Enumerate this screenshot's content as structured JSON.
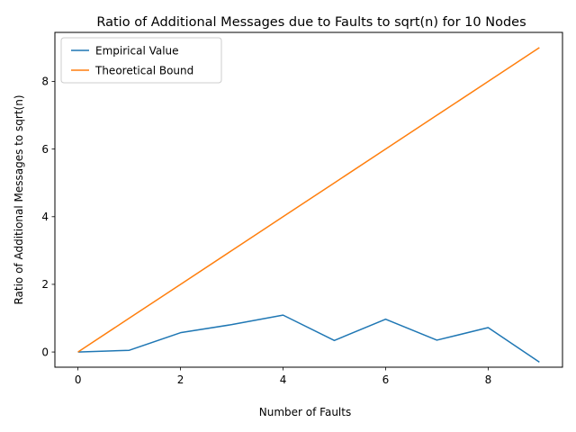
{
  "chart_data": {
    "type": "line",
    "title": "Ratio of Additional Messages due to Faults to sqrt(n) for 10 Nodes",
    "xlabel": "Number of Faults",
    "ylabel": "Ratio of Additional Messages to sqrt(n)",
    "x": [
      0,
      1,
      2,
      3,
      4,
      5,
      6,
      7,
      8,
      9
    ],
    "xlim": [
      -0.45,
      9.45
    ],
    "ylim": [
      -0.45,
      9.45
    ],
    "xticks": [
      "0",
      "2",
      "4",
      "6",
      "8"
    ],
    "yticks": [
      "0",
      "2",
      "4",
      "6",
      "8"
    ],
    "grid": false,
    "legend_position": "top-left",
    "series": [
      {
        "name": "Empirical Value",
        "color": "#1f77b4",
        "values": [
          0.0,
          0.05,
          0.57,
          0.81,
          1.09,
          0.34,
          0.97,
          0.35,
          0.72,
          -0.3
        ]
      },
      {
        "name": "Theoretical Bound",
        "color": "#ff7f0e",
        "values": [
          0,
          1,
          2,
          3,
          4,
          5,
          6,
          7,
          8,
          9
        ]
      }
    ]
  }
}
